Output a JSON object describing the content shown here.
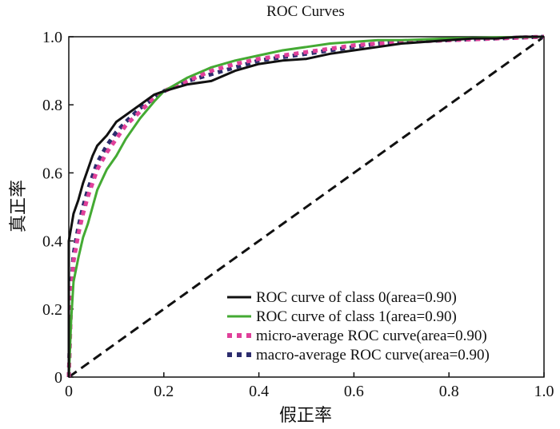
{
  "chart_data": {
    "type": "line",
    "title": "ROC Curves",
    "xlabel": "假正率",
    "ylabel": "真正率",
    "xlim": [
      0,
      1
    ],
    "ylim": [
      0,
      1
    ],
    "xticks": [
      "0",
      "0.2",
      "0.4",
      "0.6",
      "0.8",
      "1.0"
    ],
    "yticks": [
      "0",
      "0.2",
      "0.4",
      "0.6",
      "0.8",
      "1.0"
    ],
    "legend_position": "bottom-right",
    "grid": false,
    "series": [
      {
        "name": "ROC curve of class 0(area=0.90)",
        "color": "#111111",
        "style": "solid",
        "points": [
          [
            0,
            0
          ],
          [
            0,
            0.4
          ],
          [
            0.005,
            0.44
          ],
          [
            0.01,
            0.48
          ],
          [
            0.02,
            0.52
          ],
          [
            0.03,
            0.57
          ],
          [
            0.04,
            0.61
          ],
          [
            0.05,
            0.65
          ],
          [
            0.06,
            0.68
          ],
          [
            0.08,
            0.71
          ],
          [
            0.1,
            0.75
          ],
          [
            0.12,
            0.77
          ],
          [
            0.15,
            0.8
          ],
          [
            0.18,
            0.83
          ],
          [
            0.2,
            0.84
          ],
          [
            0.25,
            0.86
          ],
          [
            0.3,
            0.87
          ],
          [
            0.35,
            0.9
          ],
          [
            0.4,
            0.92
          ],
          [
            0.45,
            0.93
          ],
          [
            0.5,
            0.935
          ],
          [
            0.55,
            0.95
          ],
          [
            0.6,
            0.96
          ],
          [
            0.65,
            0.97
          ],
          [
            0.7,
            0.98
          ],
          [
            0.75,
            0.985
          ],
          [
            0.8,
            0.99
          ],
          [
            0.85,
            0.995
          ],
          [
            0.9,
            0.995
          ],
          [
            0.95,
            1.0
          ],
          [
            1.0,
            1.0
          ]
        ]
      },
      {
        "name": "ROC curve of class 1(area=0.90)",
        "color": "#44aa33",
        "style": "solid",
        "points": [
          [
            0,
            0
          ],
          [
            0.005,
            0.17
          ],
          [
            0.01,
            0.28
          ],
          [
            0.02,
            0.35
          ],
          [
            0.03,
            0.41
          ],
          [
            0.04,
            0.45
          ],
          [
            0.05,
            0.5
          ],
          [
            0.06,
            0.55
          ],
          [
            0.08,
            0.61
          ],
          [
            0.1,
            0.65
          ],
          [
            0.12,
            0.7
          ],
          [
            0.15,
            0.76
          ],
          [
            0.18,
            0.81
          ],
          [
            0.2,
            0.84
          ],
          [
            0.25,
            0.88
          ],
          [
            0.3,
            0.91
          ],
          [
            0.35,
            0.93
          ],
          [
            0.4,
            0.945
          ],
          [
            0.45,
            0.96
          ],
          [
            0.5,
            0.97
          ],
          [
            0.55,
            0.98
          ],
          [
            0.6,
            0.985
          ],
          [
            0.65,
            0.99
          ],
          [
            0.7,
            0.99
          ],
          [
            0.8,
            0.995
          ],
          [
            0.9,
            0.998
          ],
          [
            1.0,
            1.0
          ]
        ]
      },
      {
        "name": "micro-average ROC curve(area=0.90)",
        "color": "#e0409a",
        "style": "dotted",
        "points": [
          [
            0,
            0
          ],
          [
            0.005,
            0.22
          ],
          [
            0.01,
            0.34
          ],
          [
            0.02,
            0.42
          ],
          [
            0.03,
            0.48
          ],
          [
            0.04,
            0.53
          ],
          [
            0.05,
            0.57
          ],
          [
            0.06,
            0.61
          ],
          [
            0.08,
            0.66
          ],
          [
            0.1,
            0.7
          ],
          [
            0.12,
            0.74
          ],
          [
            0.15,
            0.78
          ],
          [
            0.18,
            0.82
          ],
          [
            0.2,
            0.84
          ],
          [
            0.25,
            0.87
          ],
          [
            0.3,
            0.9
          ],
          [
            0.35,
            0.92
          ],
          [
            0.4,
            0.935
          ],
          [
            0.45,
            0.945
          ],
          [
            0.5,
            0.955
          ],
          [
            0.55,
            0.965
          ],
          [
            0.6,
            0.975
          ],
          [
            0.65,
            0.98
          ],
          [
            0.7,
            0.985
          ],
          [
            0.8,
            0.99
          ],
          [
            0.9,
            0.995
          ],
          [
            1.0,
            1.0
          ]
        ]
      },
      {
        "name": "macro-average ROC curve(area=0.90)",
        "color": "#2d2d6e",
        "style": "dotted",
        "points": [
          [
            0,
            0
          ],
          [
            0.005,
            0.25
          ],
          [
            0.01,
            0.36
          ],
          [
            0.02,
            0.44
          ],
          [
            0.03,
            0.5
          ],
          [
            0.04,
            0.55
          ],
          [
            0.05,
            0.59
          ],
          [
            0.06,
            0.63
          ],
          [
            0.08,
            0.68
          ],
          [
            0.1,
            0.72
          ],
          [
            0.12,
            0.75
          ],
          [
            0.15,
            0.79
          ],
          [
            0.18,
            0.82
          ],
          [
            0.2,
            0.84
          ],
          [
            0.25,
            0.87
          ],
          [
            0.3,
            0.89
          ],
          [
            0.35,
            0.91
          ],
          [
            0.4,
            0.93
          ],
          [
            0.45,
            0.94
          ],
          [
            0.5,
            0.95
          ],
          [
            0.55,
            0.96
          ],
          [
            0.6,
            0.97
          ],
          [
            0.65,
            0.98
          ],
          [
            0.7,
            0.985
          ],
          [
            0.8,
            0.99
          ],
          [
            0.9,
            0.995
          ],
          [
            1.0,
            1.0
          ]
        ]
      }
    ],
    "reference_line": {
      "color": "#111111",
      "style": "dashed",
      "points": [
        [
          0,
          0
        ],
        [
          1,
          1
        ]
      ]
    }
  }
}
